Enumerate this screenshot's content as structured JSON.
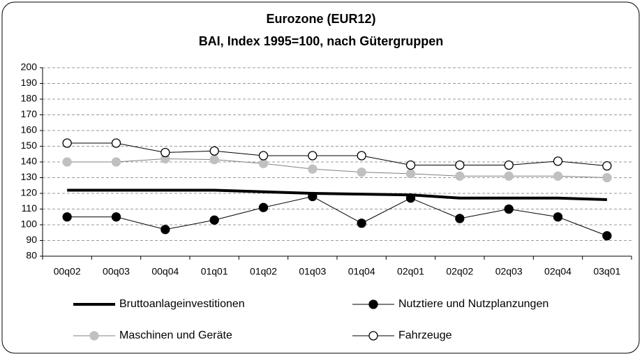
{
  "chart_data": {
    "type": "line",
    "title": "Eurozone (EUR12)",
    "subtitle": "BAI, Index 1995=100, nach Gütergruppen",
    "categories": [
      "00q02",
      "00q03",
      "00q04",
      "01q01",
      "01q02",
      "01q03",
      "01q04",
      "02q01",
      "02q02",
      "02q03",
      "02q04",
      "03q01"
    ],
    "series": [
      {
        "name": "Bruttoanlageinvestitionen",
        "color": "#000000",
        "marker": null,
        "values": [
          122,
          122,
          122,
          122,
          121,
          120,
          119.5,
          119,
          117,
          117,
          117,
          116
        ]
      },
      {
        "name": "Nutztiere und Nutzplanzungen",
        "color": "#000000",
        "marker": "#000000",
        "values": [
          105,
          105,
          97,
          103,
          111,
          118,
          101,
          117,
          104,
          110,
          105,
          93
        ]
      },
      {
        "name": "Maschinen und Geräte",
        "color": "#808080",
        "marker": "#c0c0c0",
        "values": [
          140,
          140,
          142,
          141.5,
          139,
          135.5,
          133.5,
          132.5,
          131,
          131,
          131,
          130
        ]
      },
      {
        "name": "Fahrzeuge",
        "color": "#000000",
        "marker": "#ffffff",
        "values": [
          152,
          152,
          146,
          147,
          144,
          144,
          144,
          138,
          138,
          138,
          140.5,
          137.5
        ]
      }
    ],
    "ylim": [
      80,
      200
    ],
    "yticks": [
      80,
      90,
      100,
      110,
      120,
      130,
      140,
      150,
      160,
      170,
      180,
      190,
      200
    ],
    "grid": true
  }
}
